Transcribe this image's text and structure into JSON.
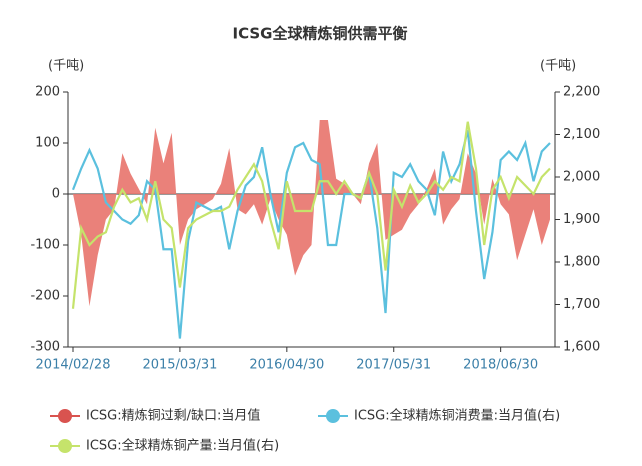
{
  "chart_data": {
    "type": "line",
    "title": "ICSG全球精炼铜供需平衡",
    "y_label": "(千吨)",
    "y2_label": "(千吨)",
    "categories": [
      "2014/02/28",
      null,
      null,
      null,
      null,
      null,
      null,
      null,
      null,
      null,
      null,
      null,
      null,
      "2015/03/31",
      null,
      null,
      null,
      null,
      null,
      null,
      null,
      null,
      null,
      null,
      null,
      null,
      "2016/04/30",
      null,
      null,
      null,
      null,
      null,
      null,
      null,
      null,
      null,
      null,
      null,
      null,
      "2017/05/31",
      null,
      null,
      null,
      null,
      null,
      null,
      null,
      null,
      null,
      null,
      null,
      null,
      "2018/06/30",
      null,
      null,
      null,
      null,
      null,
      null
    ],
    "series": [
      {
        "name": "ICSG:精炼铜过剩/缺口:当月值",
        "color": "#e8736c",
        "marker_color": "#d9534f",
        "style": "area",
        "axis": "y",
        "values": [
          0,
          -80,
          -220,
          -120,
          -50,
          -30,
          80,
          40,
          10,
          -20,
          130,
          60,
          120,
          -100,
          -50,
          -30,
          -20,
          -10,
          20,
          90,
          -30,
          -40,
          -20,
          -60,
          -10,
          -50,
          -80,
          -160,
          -120,
          -100,
          145,
          145,
          30,
          20,
          0,
          -20,
          60,
          100,
          -90,
          -80,
          -70,
          -40,
          -20,
          10,
          50,
          -60,
          -30,
          -10,
          80,
          40,
          -60,
          30,
          -20,
          -40,
          -130,
          -80,
          -30,
          -100,
          -50
        ]
      },
      {
        "name": "ICSG:全球精炼铜消费量:当月值(右)",
        "color": "#5bc0de",
        "marker_color": "#5bc0de",
        "style": "line",
        "axis": "y2",
        "values": [
          1970,
          2020,
          2063,
          2020,
          1940,
          1920,
          1900,
          1890,
          1910,
          1990,
          1970,
          1830,
          1830,
          1620,
          1850,
          1940,
          1930,
          1920,
          1930,
          1830,
          1920,
          1980,
          2000,
          2070,
          1960,
          1870,
          2010,
          2070,
          2080,
          2040,
          2030,
          1840,
          1840,
          1960,
          1960,
          1950,
          2010,
          1880,
          1680,
          2010,
          2000,
          2030,
          1990,
          1970,
          1910,
          2060,
          1990,
          2030,
          2110,
          1920,
          1760,
          1870,
          2040,
          2060,
          2040,
          2080,
          1990,
          2060,
          2080
        ]
      },
      {
        "name": "ICSG:全球精炼铜产量:当月值(右)",
        "color": "#c5e36b",
        "marker_color": "#c5e36b",
        "style": "line",
        "axis": "y2",
        "values": [
          1690,
          1880,
          1840,
          1860,
          1870,
          1930,
          1970,
          1940,
          1950,
          1900,
          1990,
          1900,
          1880,
          1740,
          1880,
          1900,
          1910,
          1920,
          1920,
          1930,
          1970,
          2000,
          2030,
          1990,
          1900,
          1830,
          1990,
          1920,
          1920,
          1920,
          1990,
          1990,
          1960,
          1990,
          1960,
          1950,
          2010,
          1960,
          1780,
          1970,
          1930,
          1980,
          1940,
          1960,
          1990,
          1970,
          2000,
          1990,
          2130,
          2020,
          1840,
          1970,
          2000,
          1950,
          2000,
          1980,
          1960,
          2000,
          2020
        ]
      }
    ],
    "ylim": [
      -300,
      200
    ],
    "yticks": [
      -300,
      -200,
      -100,
      0,
      100,
      200
    ],
    "y2lim": [
      1600,
      2200
    ],
    "y2ticks": [
      {
        "value": 1600,
        "label": "1,600"
      },
      {
        "value": 1700,
        "label": "1,700"
      },
      {
        "value": 1800,
        "label": "1,800"
      },
      {
        "value": 1900,
        "label": "1,900"
      },
      {
        "value": 2000,
        "label": "2,000"
      },
      {
        "value": 2100,
        "label": "2,100"
      },
      {
        "value": 2200,
        "label": "2,200"
      }
    ],
    "legend": "bottom"
  }
}
